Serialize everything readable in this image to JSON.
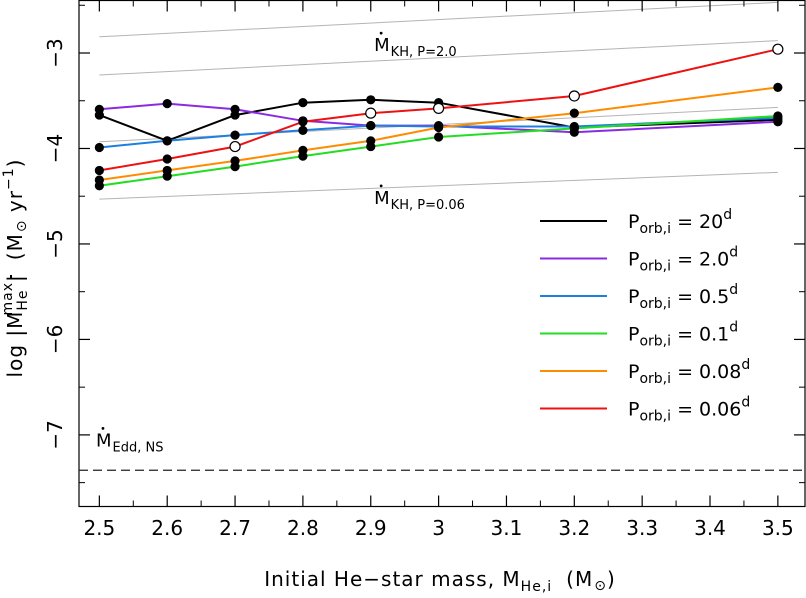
{
  "chart_data": {
    "type": "line",
    "xlabel": "Initial He−star mass, M",
    "xlabel_sub": "He,i",
    "xlabel_unit_open": "(M",
    "xlabel_unit_close": ")",
    "ylabel_pre": "log |M",
    "ylabel_sup": "max",
    "ylabel_sub": "He",
    "ylabel_post": "|",
    "ylabel_unit_open": "(M",
    "ylabel_unit_mid": " yr",
    "ylabel_unit_exp": "−1",
    "ylabel_unit_close": ")",
    "xlim": [
      2.47,
      3.54
    ],
    "ylim": [
      -7.75,
      -2.45
    ],
    "x_ticks": [
      2.5,
      2.6,
      2.7,
      2.8,
      2.9,
      3.0,
      3.1,
      3.2,
      3.3,
      3.4,
      3.5
    ],
    "x_tick_labels": [
      "2.5",
      "2.6",
      "2.7",
      "2.8",
      "2.9",
      "3",
      "3.1",
      "3.2",
      "3.3",
      "3.4",
      "3.5"
    ],
    "y_ticks": [
      -7,
      -6,
      -5,
      -4,
      -3
    ],
    "y_tick_labels": [
      "−7",
      "−6",
      "−5",
      "−4",
      "−3"
    ],
    "grid": false,
    "legend_position": "lower-right",
    "legend_prefix": "P",
    "legend_sub": "orb,i",
    "legend_eq": " = ",
    "series": [
      {
        "name": "20",
        "color": "#000000",
        "x": [
          2.5,
          2.6,
          2.7,
          2.8,
          2.9,
          3.0,
          3.2,
          3.5
        ],
        "y": [
          -3.65,
          -3.92,
          -3.65,
          -3.52,
          -3.49,
          -3.52,
          -3.78,
          -3.7
        ],
        "open": [
          false,
          false,
          false,
          false,
          false,
          false,
          false,
          false
        ]
      },
      {
        "name": "2.0",
        "color": "#8a2be2",
        "x": [
          2.5,
          2.6,
          2.7,
          2.8,
          2.9,
          3.0,
          3.2,
          3.5
        ],
        "y": [
          -3.59,
          -3.53,
          -3.59,
          -3.71,
          -3.76,
          -3.76,
          -3.83,
          -3.72
        ],
        "open": [
          false,
          false,
          false,
          false,
          false,
          false,
          false,
          false
        ]
      },
      {
        "name": "0.5",
        "color": "#1e7fe0",
        "x": [
          2.5,
          2.6,
          2.7,
          2.8,
          2.9,
          3.0,
          3.2,
          3.5
        ],
        "y": [
          -3.99,
          -3.92,
          -3.86,
          -3.81,
          -3.76,
          -3.77,
          -3.77,
          -3.68
        ],
        "open": [
          false,
          false,
          false,
          false,
          false,
          false,
          false,
          false
        ]
      },
      {
        "name": "0.1",
        "color": "#22dd22",
        "x": [
          2.5,
          2.6,
          2.7,
          2.8,
          2.9,
          3.0,
          3.2,
          3.5
        ],
        "y": [
          -4.39,
          -4.29,
          -4.19,
          -4.08,
          -3.98,
          -3.88,
          -3.79,
          -3.66
        ],
        "open": [
          false,
          false,
          false,
          false,
          false,
          false,
          false,
          false
        ]
      },
      {
        "name": "0.08",
        "color": "#ff8c00",
        "x": [
          2.5,
          2.6,
          2.7,
          2.8,
          2.9,
          3.0,
          3.2,
          3.5
        ],
        "y": [
          -4.33,
          -4.23,
          -4.13,
          -4.02,
          -3.92,
          -3.78,
          -3.63,
          -3.36
        ],
        "open": [
          false,
          false,
          false,
          false,
          false,
          false,
          false,
          false
        ]
      },
      {
        "name": "0.06",
        "color": "#ee1111",
        "x": [
          2.5,
          2.6,
          2.7,
          2.8,
          2.9,
          3.0,
          3.2,
          3.5
        ],
        "y": [
          -4.23,
          -4.11,
          -3.98,
          -3.72,
          -3.63,
          -3.58,
          -3.45,
          -2.96
        ],
        "open": [
          false,
          false,
          true,
          false,
          true,
          true,
          true,
          true
        ]
      }
    ],
    "reference_lines": [
      {
        "x": [
          2.5,
          3.5
        ],
        "y": [
          -2.83,
          -2.47
        ]
      },
      {
        "x": [
          2.5,
          3.5
        ],
        "y": [
          -3.23,
          -2.87
        ]
      },
      {
        "x": [
          2.5,
          3.5
        ],
        "y": [
          -3.93,
          -3.57
        ]
      },
      {
        "x": [
          2.5,
          3.5
        ],
        "y": [
          -4.53,
          -4.25
        ]
      }
    ],
    "eddington": {
      "y": -7.37,
      "style": "dashed"
    },
    "annotations": [
      {
        "text": "M",
        "sub": "KH, P=2.0",
        "dot": true,
        "x": 2.905,
        "y": -2.98
      },
      {
        "text": "M",
        "sub": "KH, P=0.06",
        "dot": true,
        "x": 2.905,
        "y": -4.58
      },
      {
        "text": "M",
        "sub": "Edd, NS",
        "dot": true,
        "x": 2.495,
        "y": -7.12
      }
    ]
  }
}
